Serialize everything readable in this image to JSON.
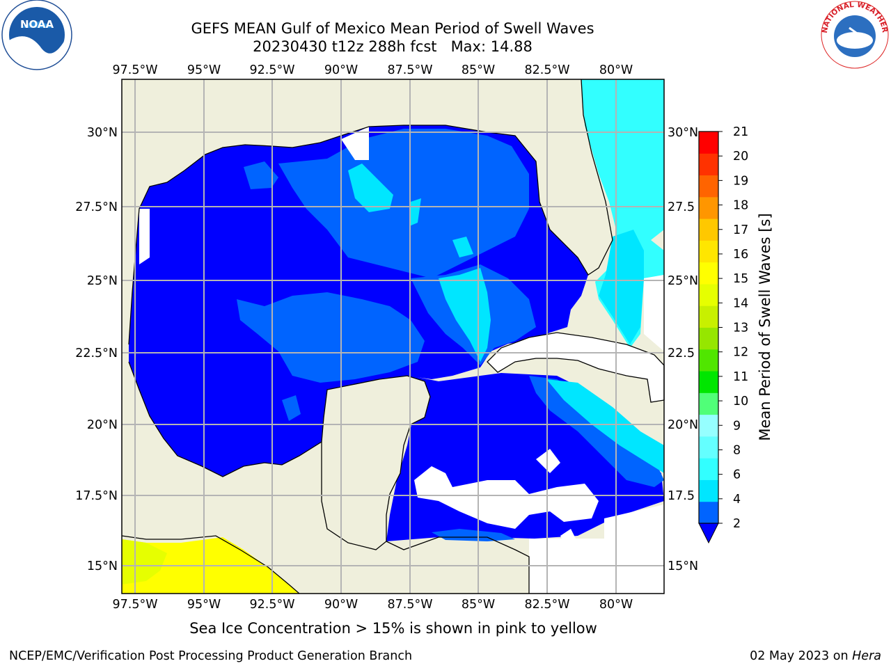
{
  "header": {
    "title_line1": "GEFS MEAN Gulf of Mexico Mean Period of Swell Waves",
    "title_line2": "20230430 t12z 288h fcst   Max: 14.88"
  },
  "logos": {
    "left": {
      "icon": "noaa-logo",
      "text": "NOAA"
    },
    "right": {
      "icon": "national-weather-service-logo",
      "text": "NATIONAL WEATHER SERVICE"
    }
  },
  "map": {
    "lon_labels": [
      "97.5°W",
      "95°W",
      "92.5°W",
      "90°W",
      "87.5°W",
      "85°W",
      "82.5°W",
      "80°W"
    ],
    "lat_labels": [
      "30°N",
      "27.5°N",
      "25°N",
      "22.5°N",
      "20°N",
      "17.5°N",
      "15°N"
    ],
    "lat_labels_right": [
      "30°N",
      "27.5",
      "25°N",
      "22.5",
      "20°N",
      "17.5",
      "15°N"
    ],
    "colors": {
      "land": "#efefdc",
      "grid": "#b4b4b4",
      "coast": "#000000"
    }
  },
  "colorbar": {
    "label": "Mean Period of Swell Waves [s]",
    "ticks": [
      "2",
      "4",
      "6",
      "8",
      "9",
      "10",
      "11",
      "12",
      "13",
      "14",
      "15",
      "16",
      "17",
      "18",
      "19",
      "20",
      "21"
    ],
    "colors": [
      "#0064ff",
      "#00e6ff",
      "#32ffff",
      "#64ffff",
      "#96ffff",
      "#50ff78",
      "#00e600",
      "#50e600",
      "#96e600",
      "#c8f000",
      "#e6ff00",
      "#ffff00",
      "#ffe600",
      "#ffc800",
      "#ff9600",
      "#ff6400",
      "#ff3200",
      "#ff0000"
    ],
    "extend_color": "#0000ff"
  },
  "subcaption": "Sea Ice Concentration > 15% is shown in pink to yellow",
  "footer": {
    "left": "NCEP/EMC/Verification Post Processing Product Generation Branch",
    "right_date": "02 May 2023 on",
    "right_host": "Hera"
  }
}
